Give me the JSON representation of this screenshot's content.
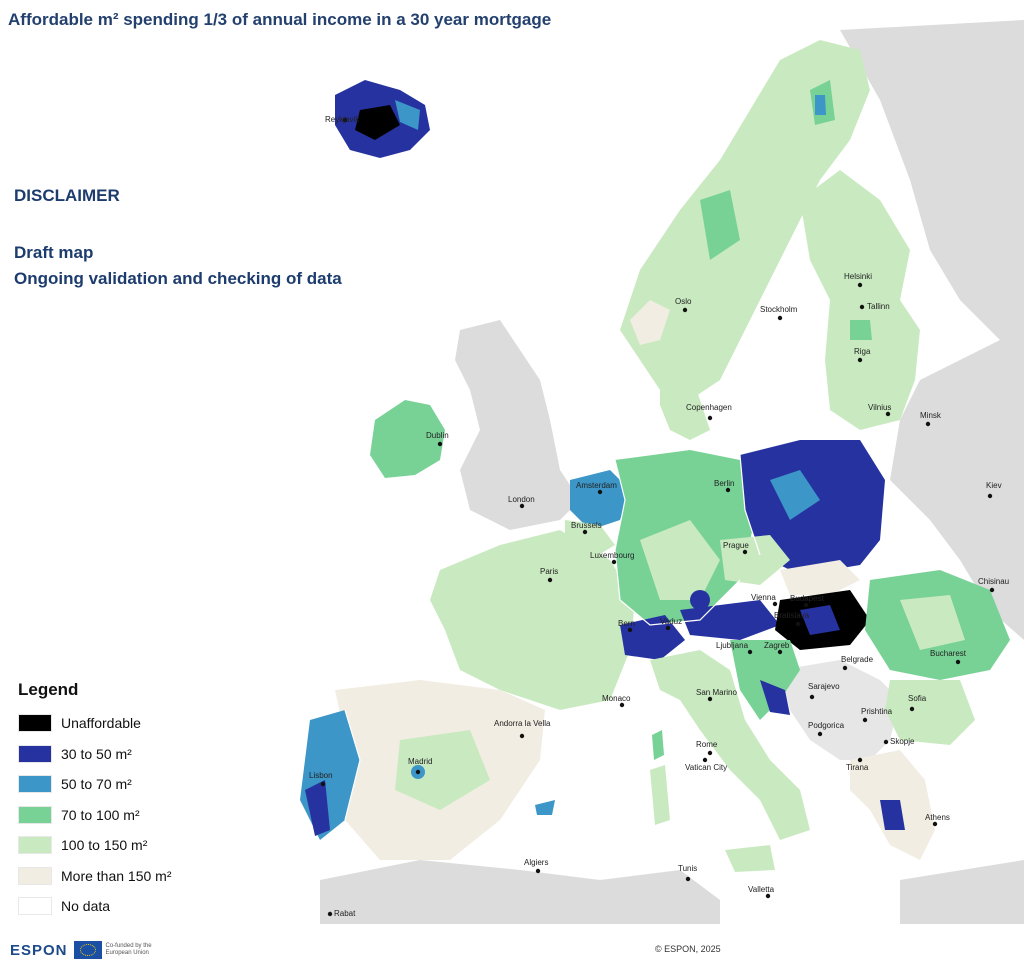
{
  "title": "Affordable m² spending 1/3 of annual income in a 30 year mortgage",
  "disclaimer": {
    "heading": "DISCLAIMER",
    "line1": "Draft map",
    "line2": "Ongoing validation and checking of data"
  },
  "legend": {
    "title": "Legend",
    "items": [
      {
        "label": "Unaffordable",
        "color": "#000000"
      },
      {
        "label": "30 to 50 m²",
        "color": "#2632a0"
      },
      {
        "label": "50 to 70 m²",
        "color": "#3c96c8"
      },
      {
        "label": "70 to 100 m²",
        "color": "#78d296"
      },
      {
        "label": "100 to 150 m²",
        "color": "#c9eac0"
      },
      {
        "label": "More than 150  m²",
        "color": "#f1ede2"
      },
      {
        "label": "No data",
        "color": "#ffffff"
      }
    ]
  },
  "colors": {
    "sea": "#ffffff",
    "other_land": "#dcdcdc"
  },
  "cities": [
    {
      "name": "Reykjavik"
    },
    {
      "name": "Oslo"
    },
    {
      "name": "Stockholm"
    },
    {
      "name": "Helsinki"
    },
    {
      "name": "Tallinn"
    },
    {
      "name": "Riga"
    },
    {
      "name": "Vilnius"
    },
    {
      "name": "Minsk"
    },
    {
      "name": "Copenhagen"
    },
    {
      "name": "Dublin"
    },
    {
      "name": "London"
    },
    {
      "name": "Amsterdam"
    },
    {
      "name": "Berlin"
    },
    {
      "name": "Brussels"
    },
    {
      "name": "Luxembourg"
    },
    {
      "name": "Paris"
    },
    {
      "name": "Prague"
    },
    {
      "name": "Kiev"
    },
    {
      "name": "Chisinau"
    },
    {
      "name": "Bratislava"
    },
    {
      "name": "Vienna"
    },
    {
      "name": "Budapest"
    },
    {
      "name": "Bern"
    },
    {
      "name": "Vaduz"
    },
    {
      "name": "Ljubljana"
    },
    {
      "name": "Zagreb"
    },
    {
      "name": "Belgrade"
    },
    {
      "name": "Bucharest"
    },
    {
      "name": "Sarajevo"
    },
    {
      "name": "Sofia"
    },
    {
      "name": "Prishtina"
    },
    {
      "name": "Podgorica"
    },
    {
      "name": "Skopje"
    },
    {
      "name": "Tirana"
    },
    {
      "name": "Monaco"
    },
    {
      "name": "San Marino"
    },
    {
      "name": "Andorra la Vella"
    },
    {
      "name": "Madrid"
    },
    {
      "name": "Lisbon"
    },
    {
      "name": "Rome"
    },
    {
      "name": "Vatican City"
    },
    {
      "name": "Athens"
    },
    {
      "name": "Algiers"
    },
    {
      "name": "Tunis"
    },
    {
      "name": "Valletta"
    },
    {
      "name": "Rabat"
    }
  ],
  "footer": {
    "logo": "ESPON",
    "cofunded": "Co-funded by the European Union",
    "copyright": "© ESPON, 2025"
  }
}
